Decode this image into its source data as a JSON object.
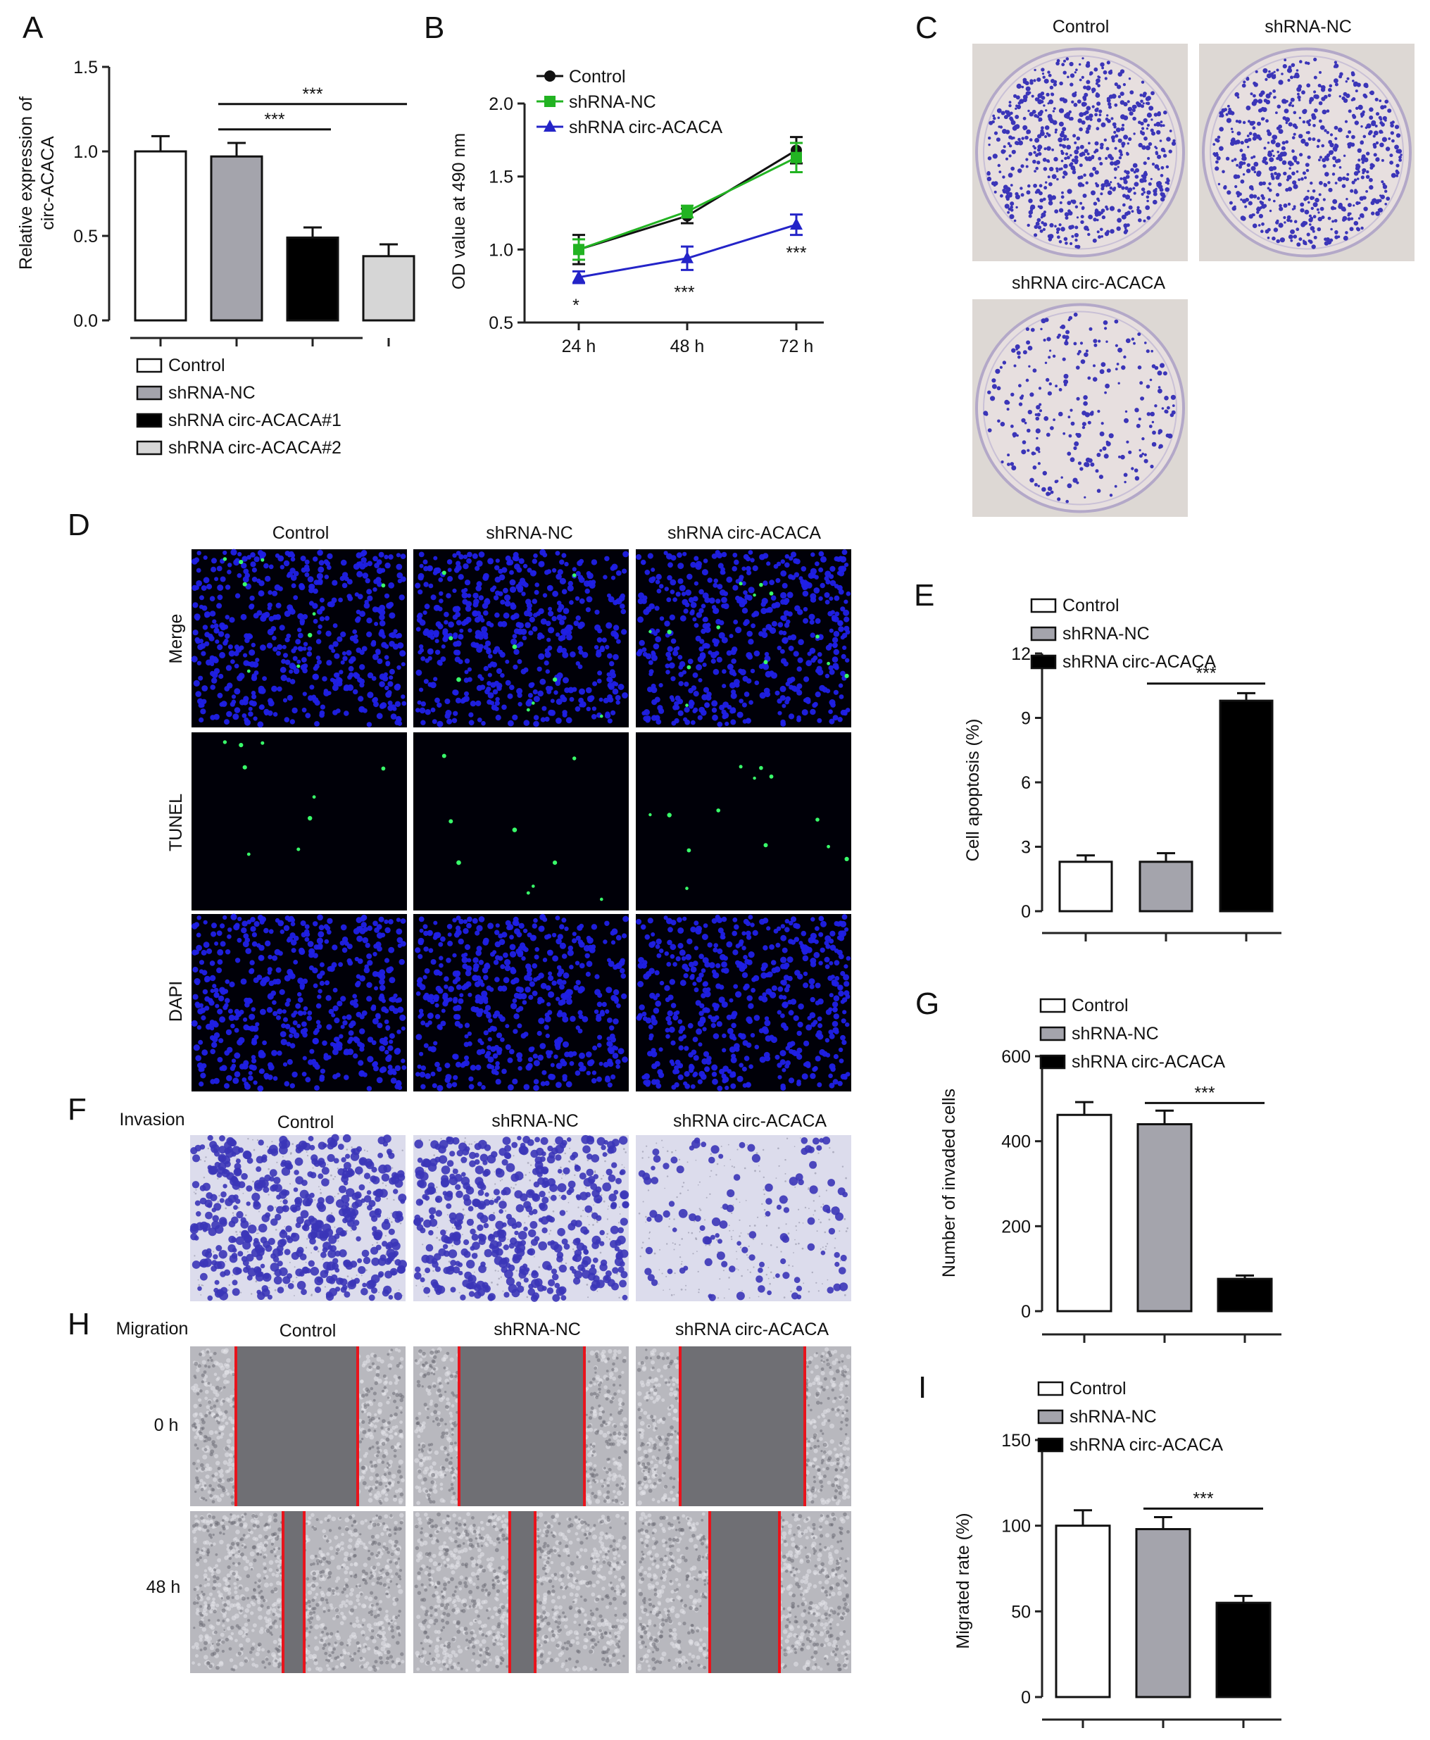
{
  "panel_letters": [
    "A",
    "B",
    "C",
    "D",
    "E",
    "F",
    "G",
    "H",
    "I"
  ],
  "chart_data": [
    {
      "panel": "A",
      "type": "bar",
      "ylabel_lines": [
        "Relative expression of",
        "circ-ACACA"
      ],
      "ylim": [
        0,
        1.5
      ],
      "yticks": [
        "0.0",
        "0.5",
        "1.0",
        "1.5"
      ],
      "categories": [
        "Control",
        "shRNA-NC",
        "shRNA circ-ACACA#1",
        "shRNA circ-ACACA#2"
      ],
      "values": [
        1.0,
        0.97,
        0.49,
        0.38
      ],
      "errors": [
        0.09,
        0.08,
        0.06,
        0.07
      ],
      "colors": [
        "#ffffff",
        "#a4a4ac",
        "#000000",
        "#d6d6d6"
      ],
      "legend": [
        "Control",
        "shRNA-NC",
        "shRNA circ-ACACA#1",
        "shRNA circ-ACACA#2"
      ],
      "brackets": [
        {
          "from": 1,
          "to": 2,
          "label": "***",
          "y": 1.13
        },
        {
          "from": 1,
          "to": 3,
          "label": "***",
          "y": 1.28
        }
      ]
    },
    {
      "panel": "B",
      "type": "line",
      "ylabel": "OD value at 490 nm",
      "ylim": [
        0.5,
        2.0
      ],
      "yticks": [
        "0.5",
        "1.0",
        "1.5",
        "2.0"
      ],
      "x": [
        "24 h",
        "48 h",
        "72 h"
      ],
      "series": [
        {
          "name": "Control",
          "values": [
            1.0,
            1.23,
            1.68
          ],
          "errors": [
            0.1,
            0.05,
            0.09
          ],
          "color": "#111111",
          "marker": "circle"
        },
        {
          "name": "shRNA-NC",
          "values": [
            1.0,
            1.26,
            1.63
          ],
          "errors": [
            0.07,
            0.04,
            0.1
          ],
          "color": "#22b322",
          "marker": "square"
        },
        {
          "name": "shRNA circ-ACACA",
          "values": [
            0.81,
            0.94,
            1.17
          ],
          "errors": [
            0.04,
            0.08,
            0.07
          ],
          "color": "#2424c8",
          "marker": "triangle"
        }
      ],
      "annotations": [
        "*",
        "***",
        "***"
      ]
    },
    {
      "panel": "E",
      "type": "bar",
      "ylabel": "Cell apoptosis (%)",
      "ylim": [
        0,
        12
      ],
      "yticks": [
        "0",
        "3",
        "6",
        "9",
        "12"
      ],
      "categories": [
        "Control",
        "shRNA-NC",
        "shRNA circ-ACACA"
      ],
      "values": [
        2.3,
        2.3,
        9.8
      ],
      "errors": [
        0.3,
        0.4,
        0.35
      ],
      "colors": [
        "#ffffff",
        "#a4a4ac",
        "#000000"
      ],
      "legend": [
        "Control",
        "shRNA-NC",
        "shRNA circ-ACACA"
      ],
      "brackets": [
        {
          "from": 1,
          "to": 2,
          "label": "***",
          "y": 10.6
        }
      ]
    },
    {
      "panel": "G",
      "type": "bar",
      "ylabel": "Number of invaded cells",
      "ylim": [
        0,
        600
      ],
      "yticks": [
        "0",
        "200",
        "400",
        "600"
      ],
      "categories": [
        "Control",
        "shRNA-NC",
        "shRNA circ-ACACA"
      ],
      "values": [
        462,
        440,
        76
      ],
      "errors": [
        30,
        32,
        8
      ],
      "colors": [
        "#ffffff",
        "#a4a4ac",
        "#000000"
      ],
      "legend": [
        "Control",
        "shRNA-NC",
        "shRNA circ-ACACA"
      ],
      "brackets": [
        {
          "from": 1,
          "to": 2,
          "label": "***",
          "y": 490
        }
      ]
    },
    {
      "panel": "I",
      "type": "bar",
      "ylabel": "Migrated rate (%)",
      "ylim": [
        0,
        150
      ],
      "yticks": [
        "0",
        "50",
        "100",
        "150"
      ],
      "categories": [
        "Control",
        "shRNA-NC",
        "shRNA circ-ACACA"
      ],
      "values": [
        100,
        98,
        55
      ],
      "errors": [
        9,
        7,
        4
      ],
      "colors": [
        "#ffffff",
        "#a4a4ac",
        "#000000"
      ],
      "legend": [
        "Control",
        "shRNA-NC",
        "shRNA circ-ACACA"
      ],
      "brackets": [
        {
          "from": 1,
          "to": 2,
          "label": "***",
          "y": 110
        }
      ]
    }
  ],
  "panel_C": {
    "labels": [
      "Control",
      "shRNA-NC",
      "shRNA circ-ACACA"
    ],
    "colony_counts": [
      700,
      640,
      260
    ]
  },
  "panel_D": {
    "columns": [
      "Control",
      "shRNA-NC",
      "shRNA circ-ACACA"
    ],
    "rows": [
      "Merge",
      "TUNEL",
      "DAPI"
    ]
  },
  "panel_F": {
    "title": "Invasion",
    "columns": [
      "Control",
      "shRNA-NC",
      "shRNA circ-ACACA"
    ]
  },
  "panel_H": {
    "title": "Migration",
    "columns": [
      "Control",
      "shRNA-NC",
      "shRNA circ-ACACA"
    ],
    "rows": [
      "0 h",
      "48 h"
    ]
  },
  "colors": {
    "dapi_blue": "#2020e6",
    "tunel_green": "#39ff6a",
    "crystal_violet": "#3b35b8",
    "scratch_line": "#e8141c"
  }
}
